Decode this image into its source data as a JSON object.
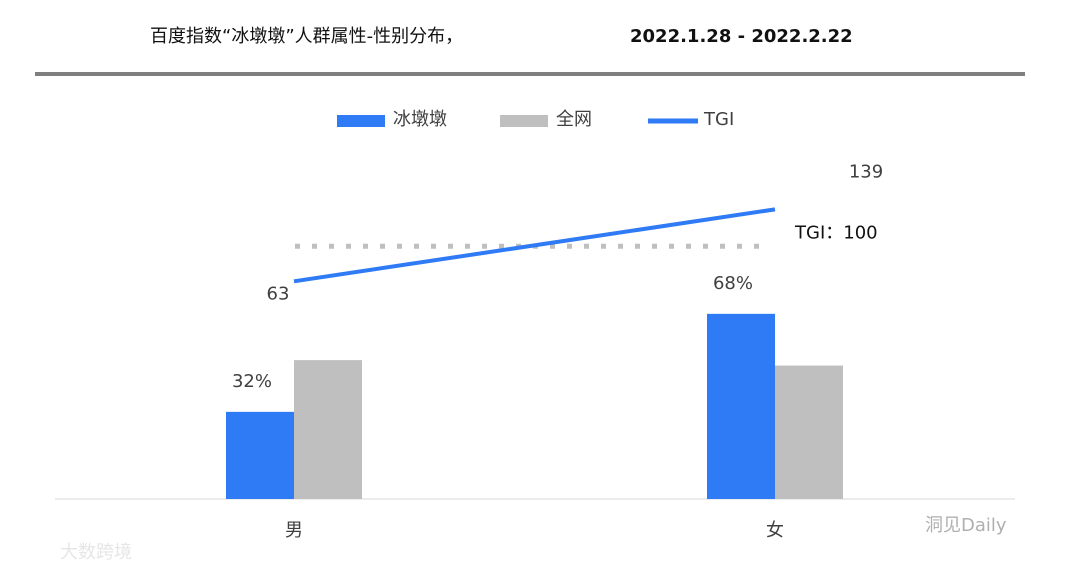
{
  "chart_data": {
    "type": "bar_line",
    "title": "百度指数“冰墩墩”人群属性-性别分布，",
    "date_range": "2022.1.28 - 2022.2.22",
    "categories": [
      "男",
      "女"
    ],
    "series": [
      {
        "name": "冰墩墩",
        "color": "#2f7af5",
        "values": [
          32,
          68
        ],
        "value_labels": [
          "32%",
          "68%"
        ]
      },
      {
        "name": "全网",
        "color": "#bfbfbf",
        "values": [
          51,
          49
        ]
      },
      {
        "name": "TGI",
        "color": "#2f7af5",
        "type": "line",
        "axis": "y2",
        "values": [
          63,
          139
        ]
      }
    ],
    "reference": {
      "value": 100,
      "label": "TGI：100",
      "color": "#bfbfbf"
    },
    "ylim": [
      0,
      130
    ],
    "y2lim": [
      -167,
      207
    ],
    "watermarks": [
      "大数跨境",
      "洞见Daily"
    ]
  }
}
